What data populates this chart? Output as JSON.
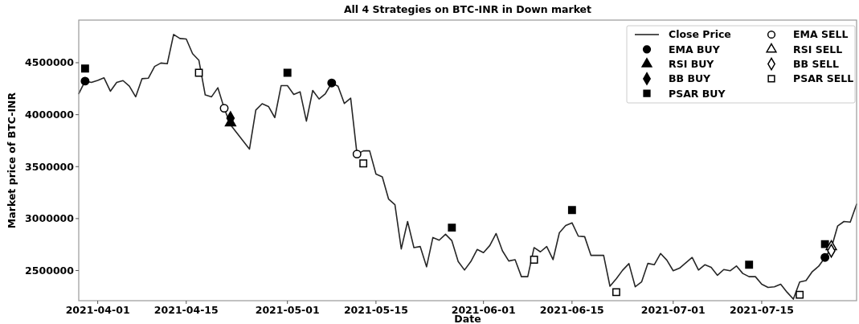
{
  "chart_data": {
    "type": "line",
    "title": "All 4 Strategies on BTC-INR in Down market",
    "xlabel": "Date",
    "ylabel": "Market price of BTC-INR",
    "xlim": [
      "2021-03-29",
      "2021-07-30"
    ],
    "xticks": [
      "2021-04-01",
      "2021-04-15",
      "2021-05-01",
      "2021-05-15",
      "2021-06-01",
      "2021-06-15",
      "2021-07-01",
      "2021-07-15"
    ],
    "ylim": [
      2210000,
      4910000
    ],
    "yticks": [
      2500000,
      3000000,
      3500000,
      4000000,
      4500000
    ],
    "grid": false,
    "legend": "top right",
    "line_style": "solid",
    "marker": "none",
    "series": [
      {
        "name": "Close Price",
        "color": "#262626",
        "x": [
          "2021-03-29",
          "2021-03-30",
          "2021-03-31",
          "2021-04-01",
          "2021-04-02",
          "2021-04-03",
          "2021-04-04",
          "2021-04-05",
          "2021-04-06",
          "2021-04-07",
          "2021-04-08",
          "2021-04-09",
          "2021-04-10",
          "2021-04-11",
          "2021-04-12",
          "2021-04-13",
          "2021-04-14",
          "2021-04-15",
          "2021-04-16",
          "2021-04-17",
          "2021-04-18",
          "2021-04-19",
          "2021-04-20",
          "2021-04-21",
          "2021-04-22",
          "2021-04-25",
          "2021-04-26",
          "2021-04-27",
          "2021-04-28",
          "2021-04-29",
          "2021-04-30",
          "2021-05-01",
          "2021-05-02",
          "2021-05-03",
          "2021-05-04",
          "2021-05-05",
          "2021-05-06",
          "2021-05-07",
          "2021-05-08",
          "2021-05-09",
          "2021-05-10",
          "2021-05-11",
          "2021-05-12",
          "2021-05-13",
          "2021-05-14",
          "2021-05-15",
          "2021-05-16",
          "2021-05-17",
          "2021-05-18",
          "2021-05-19",
          "2021-05-20",
          "2021-05-21",
          "2021-05-22",
          "2021-05-23",
          "2021-05-24",
          "2021-05-25",
          "2021-05-26",
          "2021-05-27",
          "2021-05-28",
          "2021-05-29",
          "2021-05-30",
          "2021-05-31",
          "2021-06-01",
          "2021-06-02",
          "2021-06-03",
          "2021-06-04",
          "2021-06-05",
          "2021-06-06",
          "2021-06-07",
          "2021-06-08",
          "2021-06-09",
          "2021-06-10",
          "2021-06-11",
          "2021-06-12",
          "2021-06-13",
          "2021-06-14",
          "2021-06-15",
          "2021-06-16",
          "2021-06-17",
          "2021-06-18",
          "2021-06-19",
          "2021-06-20",
          "2021-06-21",
          "2021-06-22",
          "2021-06-23",
          "2021-06-24",
          "2021-06-25",
          "2021-06-26",
          "2021-06-27",
          "2021-06-28",
          "2021-06-29",
          "2021-06-30",
          "2021-07-01",
          "2021-07-02",
          "2021-07-03",
          "2021-07-04",
          "2021-07-05",
          "2021-07-06",
          "2021-07-07",
          "2021-07-08",
          "2021-07-09",
          "2021-07-10",
          "2021-07-11",
          "2021-07-12",
          "2021-07-13",
          "2021-07-14",
          "2021-07-15",
          "2021-07-16",
          "2021-07-17",
          "2021-07-18",
          "2021-07-19",
          "2021-07-20",
          "2021-07-21",
          "2021-07-22",
          "2021-07-23",
          "2021-07-24",
          "2021-07-25",
          "2021-07-26",
          "2021-07-27",
          "2021-07-28",
          "2021-07-29",
          "2021-07-30"
        ],
        "values": [
          4202000,
          4323000,
          4310000,
          4330000,
          4354000,
          4226000,
          4310000,
          4328000,
          4274000,
          4172000,
          4346000,
          4351000,
          4464000,
          4497000,
          4490000,
          4772000,
          4733000,
          4728000,
          4587000,
          4523000,
          4190000,
          4172000,
          4259000,
          4062000,
          3902000,
          3669000,
          4044000,
          4105000,
          4079000,
          3972000,
          4279000,
          4279000,
          4195000,
          4220000,
          3938000,
          4233000,
          4151000,
          4202000,
          4305000,
          4274000,
          4108000,
          4159000,
          3621000,
          3652000,
          3652000,
          3428000,
          3402000,
          3187000,
          3133000,
          2708000,
          2972000,
          2721000,
          2731000,
          2536000,
          2818000,
          2792000,
          2849000,
          2787000,
          2587000,
          2505000,
          2587000,
          2703000,
          2672000,
          2741000,
          2856000,
          2690000,
          2592000,
          2605000,
          2441000,
          2441000,
          2721000,
          2680000,
          2731000,
          2605000,
          2864000,
          2933000,
          2959000,
          2831000,
          2826000,
          2646000,
          2646000,
          2646000,
          2349000,
          2421000,
          2503000,
          2567000,
          2344000,
          2390000,
          2569000,
          2556000,
          2664000,
          2600000,
          2498000,
          2523000,
          2574000,
          2626000,
          2505000,
          2556000,
          2531000,
          2454000,
          2510000,
          2498000,
          2544000,
          2472000,
          2441000,
          2441000,
          2369000,
          2338000,
          2344000,
          2369000,
          2292000,
          2225000,
          2390000,
          2403000,
          2490000,
          2541000,
          2626000,
          2715000,
          2928000,
          2972000,
          2966000,
          3138000
        ]
      },
      {
        "name": "EMA BUY",
        "type": "scatter",
        "marker": "circle",
        "color": "#000000",
        "x": [
          "2021-03-30",
          "2021-05-08",
          "2021-07-25"
        ],
        "values": [
          4323000,
          4305000,
          2626000
        ]
      },
      {
        "name": "RSI BUY",
        "type": "scatter",
        "marker": "triangle",
        "color": "#000000",
        "x": [
          "2021-04-22"
        ],
        "values": [
          3921000
        ]
      },
      {
        "name": "BB BUY",
        "type": "scatter",
        "marker": "diamond",
        "color": "#000000",
        "x": [
          "2021-04-22"
        ],
        "values": [
          3967000
        ]
      },
      {
        "name": "PSAR BUY",
        "type": "scatter",
        "marker": "square",
        "color": "#000000",
        "x": [
          "2021-03-30",
          "2021-05-01",
          "2021-05-27",
          "2021-06-15",
          "2021-07-13",
          "2021-07-25"
        ],
        "values": [
          4444000,
          4403000,
          2913000,
          3082000,
          2556000,
          2754000
        ]
      },
      {
        "name": "EMA SELL",
        "type": "scatter",
        "marker": "circle-open",
        "color": "#000000",
        "x": [
          "2021-04-21",
          "2021-05-12"
        ],
        "values": [
          4062000,
          3621000
        ]
      },
      {
        "name": "RSI SELL",
        "type": "scatter",
        "marker": "triangle-open",
        "color": "#000000",
        "x": [
          "2021-07-26"
        ],
        "values": [
          2730000
        ]
      },
      {
        "name": "BB SELL",
        "type": "scatter",
        "marker": "diamond-open",
        "color": "#000000",
        "x": [
          "2021-07-26"
        ],
        "values": [
          2690000
        ]
      },
      {
        "name": "PSAR SELL",
        "type": "scatter",
        "marker": "square-open",
        "color": "#000000",
        "x": [
          "2021-04-17",
          "2021-05-13",
          "2021-06-09",
          "2021-06-22",
          "2021-07-21"
        ],
        "values": [
          4403000,
          3531000,
          2605000,
          2292000,
          2267000
        ]
      }
    ]
  }
}
